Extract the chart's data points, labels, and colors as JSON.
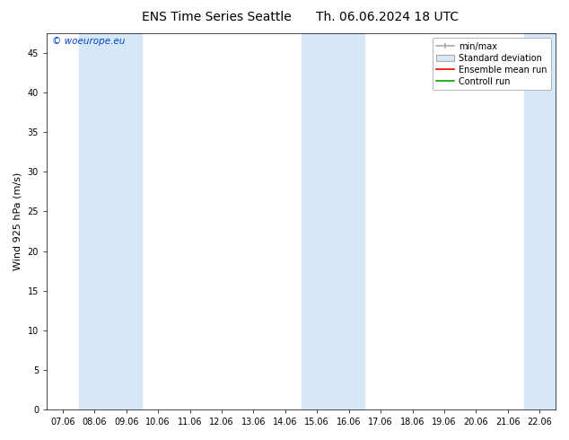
{
  "title_left": "ENS Time Series Seattle",
  "title_right": "Th. 06.06.2024 18 UTC",
  "ylabel": "Wind 925 hPa (m/s)",
  "ylim": [
    0,
    47.5
  ],
  "yticks": [
    0,
    5,
    10,
    15,
    20,
    25,
    30,
    35,
    40,
    45
  ],
  "xtick_labels": [
    "07.06",
    "08.06",
    "09.06",
    "10.06",
    "11.06",
    "12.06",
    "13.06",
    "14.06",
    "15.06",
    "16.06",
    "17.06",
    "18.06",
    "19.06",
    "20.06",
    "21.06",
    "22.06"
  ],
  "xtick_positions": [
    0,
    1,
    2,
    3,
    4,
    5,
    6,
    7,
    8,
    9,
    10,
    11,
    12,
    13,
    14,
    15
  ],
  "xlim": [
    -0.5,
    15.5
  ],
  "shaded_bands": [
    [
      0.5,
      1.5
    ],
    [
      1.5,
      2.5
    ],
    [
      7.5,
      8.5
    ],
    [
      8.5,
      9.5
    ],
    [
      14.5,
      15.5
    ]
  ],
  "shade_color": "#d6e8f7",
  "background_color": "#ffffff",
  "watermark": "© woeurope.eu",
  "watermark_color": "#0044cc",
  "legend_items": [
    "min/max",
    "Standard deviation",
    "Ensemble mean run",
    "Controll run"
  ],
  "legend_colors_line": [
    "#aaaaaa",
    "#bbccdd",
    "#ff0000",
    "#00aa00"
  ],
  "title_fontsize": 10,
  "tick_fontsize": 7,
  "ylabel_fontsize": 8,
  "legend_fontsize": 7
}
